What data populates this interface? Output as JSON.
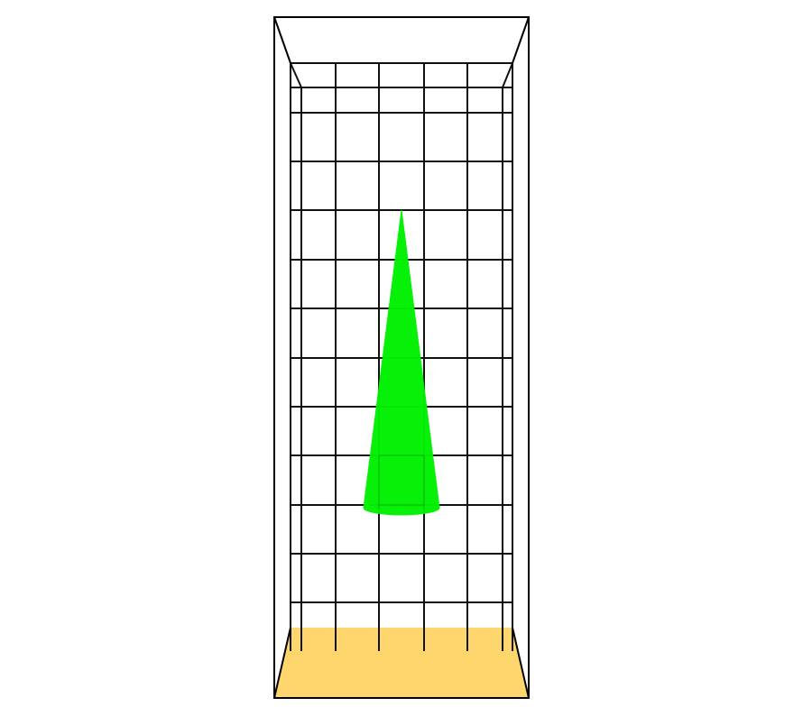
{
  "scene": {
    "floor_color": "#FFD56E",
    "cone_color": "#00F000",
    "frame_color": "#000000",
    "grid_color": "#111111",
    "grid": {
      "columns": 5,
      "rows": 12
    },
    "objects": [
      {
        "name": "cone",
        "color": "#00F000"
      },
      {
        "name": "floor",
        "color": "#FFD56E"
      }
    ]
  }
}
